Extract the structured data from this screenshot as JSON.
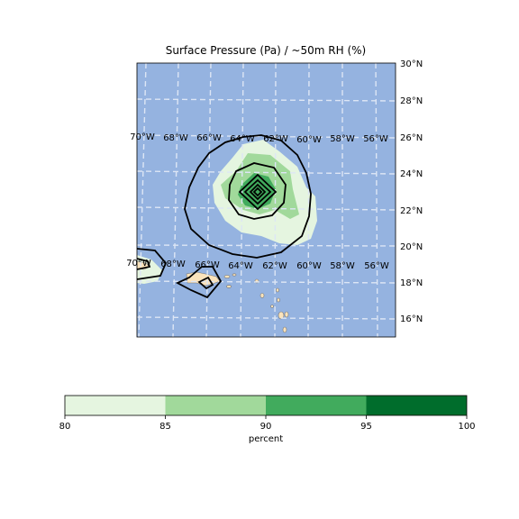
{
  "figure": {
    "title": "Surface Pressure (Pa) / ~50m RH (%)"
  },
  "map": {
    "ocean_color": "#95b3e0",
    "land_color": "#fbe3bb",
    "grid_color": "#dde6f5",
    "lat_labels": [
      "30°N",
      "28°N",
      "26°N",
      "24°N",
      "22°N",
      "20°N",
      "18°N",
      "16°N"
    ],
    "lon_labels_upper": [
      "70°W",
      "68°W",
      "66°W",
      "64°W",
      "62°W",
      "60°W",
      "58°W",
      "56°W"
    ],
    "lon_labels_lower": [
      "70°W",
      "68°W",
      "66°W",
      "64°W",
      "62°W",
      "60°W",
      "58°W",
      "56°W"
    ]
  },
  "colorbar": {
    "ticks": [
      "80",
      "85",
      "90",
      "95",
      "100"
    ],
    "label": "percent",
    "colors": [
      "#e5f5e0",
      "#a1d99b",
      "#41ab5d",
      "#006d2c"
    ]
  }
}
